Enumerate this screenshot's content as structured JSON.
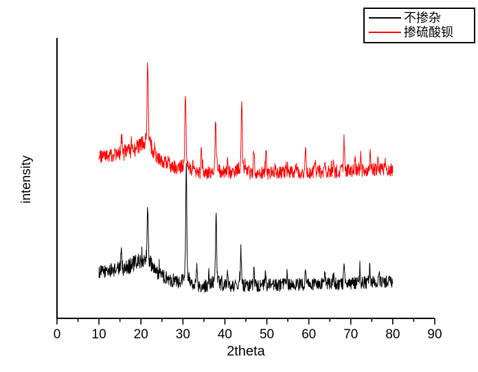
{
  "figure": {
    "background_color": "#ffffff",
    "accent_colors": {
      "series_black": "#000000",
      "series_red": "#ff0000"
    }
  },
  "chart_data": {
    "type": "line",
    "title": "",
    "xlabel": "2theta",
    "ylabel": "intensity",
    "xlim": [
      0,
      90
    ],
    "x_major_ticks": [
      0,
      10,
      20,
      30,
      40,
      50,
      60,
      70,
      80,
      90
    ],
    "x_minor_tick_step": 5,
    "data_x_range": [
      10,
      80
    ],
    "y_axis_note": "intensity in arbitrary units 0-100 (no y tick labels shown)",
    "grid": false,
    "legend_position": "top-right",
    "series": [
      {
        "name": "不掺杂",
        "color": "#000000",
        "noise_amplitude": 2.3,
        "baseline_points": [
          [
            10,
            16.5
          ],
          [
            12,
            17.0
          ],
          [
            14,
            17.5
          ],
          [
            16,
            18.0
          ],
          [
            18,
            19.3
          ],
          [
            20,
            20.5
          ],
          [
            21,
            20.3
          ],
          [
            22,
            19.2
          ],
          [
            23,
            17.5
          ],
          [
            24,
            16.2
          ],
          [
            25,
            15.3
          ],
          [
            26,
            14.5
          ],
          [
            27,
            13.8
          ],
          [
            28,
            13.2
          ],
          [
            29,
            12.8
          ],
          [
            30,
            12.5
          ],
          [
            32,
            12.0
          ],
          [
            34,
            11.7
          ],
          [
            36,
            11.6
          ],
          [
            38,
            11.5
          ],
          [
            40,
            11.8
          ],
          [
            45,
            11.8
          ],
          [
            50,
            11.8
          ],
          [
            55,
            12.0
          ],
          [
            60,
            12.2
          ],
          [
            65,
            12.3
          ],
          [
            70,
            12.4
          ],
          [
            75,
            12.8
          ],
          [
            80,
            13.0
          ]
        ],
        "peaks": [
          [
            15.3,
            9.0,
            0.1
          ],
          [
            21.6,
            17.5,
            0.13
          ],
          [
            30.8,
            38.0,
            0.13
          ],
          [
            33.3,
            8.0,
            0.1
          ],
          [
            36.2,
            4.0,
            0.1
          ],
          [
            37.9,
            23.0,
            0.13
          ],
          [
            40.6,
            4.0,
            0.1
          ],
          [
            43.8,
            13.0,
            0.12
          ],
          [
            46.9,
            7.0,
            0.11
          ],
          [
            49.7,
            4.5,
            0.1
          ],
          [
            54.8,
            3.5,
            0.1
          ],
          [
            59.2,
            6.5,
            0.12
          ],
          [
            61.5,
            2.5,
            0.1
          ],
          [
            63.8,
            3.0,
            0.1
          ],
          [
            65.9,
            4.0,
            0.1
          ],
          [
            68.4,
            8.0,
            0.12
          ],
          [
            72.2,
            6.0,
            0.11
          ],
          [
            74.5,
            5.5,
            0.11
          ],
          [
            76.8,
            3.5,
            0.1
          ]
        ]
      },
      {
        "name": "掺硫酸钡",
        "color": "#ff0000",
        "noise_amplitude": 2.4,
        "baseline_points": [
          [
            10,
            57.5
          ],
          [
            12,
            58.0
          ],
          [
            14,
            58.5
          ],
          [
            16,
            59.2
          ],
          [
            18,
            60.5
          ],
          [
            20,
            61.7
          ],
          [
            21,
            61.4
          ],
          [
            22,
            60.3
          ],
          [
            23,
            58.8
          ],
          [
            24,
            57.3
          ],
          [
            25,
            56.2
          ],
          [
            26,
            55.3
          ],
          [
            27,
            54.5
          ],
          [
            28,
            53.9
          ],
          [
            29,
            53.4
          ],
          [
            30,
            53.1
          ],
          [
            32,
            52.5
          ],
          [
            34,
            52.1
          ],
          [
            36,
            51.9
          ],
          [
            38,
            51.8
          ],
          [
            40,
            52.1
          ],
          [
            45,
            51.9
          ],
          [
            50,
            51.9
          ],
          [
            55,
            52.1
          ],
          [
            60,
            52.3
          ],
          [
            65,
            52.5
          ],
          [
            70,
            52.7
          ],
          [
            75,
            53.0
          ],
          [
            80,
            53.1
          ]
        ],
        "peaks": [
          [
            15.4,
            6.0,
            0.1
          ],
          [
            17.8,
            3.0,
            0.1
          ],
          [
            21.6,
            29.0,
            0.13
          ],
          [
            23.3,
            4.0,
            0.1
          ],
          [
            26.6,
            3.0,
            0.1
          ],
          [
            30.6,
            25.5,
            0.13
          ],
          [
            32.4,
            3.0,
            0.1
          ],
          [
            34.4,
            9.0,
            0.11
          ],
          [
            37.8,
            17.5,
            0.13
          ],
          [
            40.6,
            4.0,
            0.1
          ],
          [
            44.0,
            24.0,
            0.13
          ],
          [
            46.9,
            9.5,
            0.11
          ],
          [
            49.8,
            8.0,
            0.11
          ],
          [
            52.0,
            2.5,
            0.1
          ],
          [
            54.6,
            5.0,
            0.1
          ],
          [
            57.0,
            2.5,
            0.1
          ],
          [
            59.2,
            8.0,
            0.12
          ],
          [
            61.5,
            3.0,
            0.1
          ],
          [
            63.8,
            5.0,
            0.1
          ],
          [
            65.9,
            6.0,
            0.1
          ],
          [
            68.4,
            11.0,
            0.12
          ],
          [
            71.0,
            6.0,
            0.1
          ],
          [
            72.4,
            5.0,
            0.11
          ],
          [
            74.6,
            5.5,
            0.11
          ],
          [
            76.5,
            3.5,
            0.1
          ],
          [
            78.2,
            3.0,
            0.1
          ]
        ]
      }
    ]
  }
}
